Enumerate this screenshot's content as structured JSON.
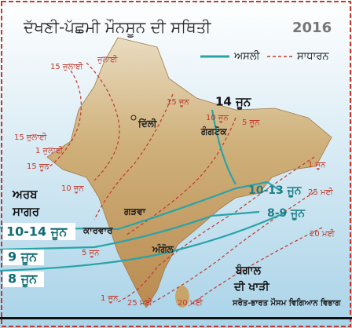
{
  "title": "ਦੱਖਣੀ-ਪੱਛਮੀ ਮੌਨਸੂਨ ਦੀ ਸਥਿਤੀ",
  "year": "2016",
  "legend": {
    "actual": "ਅਸਲੀ",
    "normal": "ਸਾਧਾਰਨ"
  },
  "labels": [
    "15 ਜੁਲਾਈ",
    "ਜੁਲਾਈ",
    "ਦਿੱਲੀ",
    "15 ਜੂਨ",
    "14 ਜੂਨ",
    "10 ਜੂਨ",
    "ਗੰਗਟੋਕ",
    "5 ਜੂਨ",
    "15 ਜੁਲਾਈ",
    "1 ਜੁਲਾਈ",
    "15 ਜੂਨ",
    "1 ਜੂਨ",
    "ਅਰਬ",
    "ਸਾਗਰ",
    "10 ਜੂਨ",
    "10-13 ਜੂਨ",
    "25 ਮਈ",
    "ਗੜਵਾ",
    "8-9 ਜੂਨ",
    "20 ਮਈ",
    "10-14 ਜੂਨ",
    "ਕਾਰਵਾਰ",
    "9 ਜੂਨ",
    "5 ਜੂਨ",
    "ਅੰਗੋਲ",
    "8 ਜੂਨ",
    "ਬੰਗਾਲ",
    "ਦੀ ਖਾੜੀ",
    "1 ਜੂਨ",
    "25 ਮਈ",
    "20 ਮਈ"
  ],
  "source": "ਸਰੋਤ-ਭਾਰਤ ਮੌਸਮ ਵਿਗਿਆਨ ਵਿਭਾਗ"
}
